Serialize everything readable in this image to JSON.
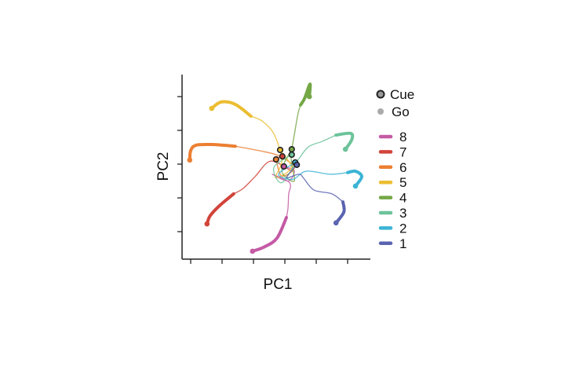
{
  "chart_data": {
    "type": "line",
    "title": "",
    "xlabel": "PC1",
    "ylabel": "PC2",
    "xlim": [
      -3.3,
      2.7
    ],
    "ylim": [
      -2.8,
      2.65
    ],
    "x_ticks": [
      -3,
      -2,
      -1,
      0,
      1,
      2
    ],
    "y_ticks": [
      -2,
      -1,
      0,
      1,
      2
    ],
    "tick_labels_shown": false,
    "grid": false,
    "legend_placement": "right",
    "markers": {
      "cue_label": "Cue",
      "go_label": "Go",
      "go_color": "#aaaaaa"
    },
    "series": [
      {
        "name": "8",
        "color": "#c55aa5",
        "late_start_index": 7,
        "points": [
          [
            -0.03,
            -0.07
          ],
          [
            0.3,
            -0.2
          ],
          [
            0.1,
            -0.5
          ],
          [
            -0.4,
            -0.3
          ],
          [
            0.15,
            -0.55
          ],
          [
            0.12,
            -0.9
          ],
          [
            0.1,
            -1.3
          ],
          [
            0.05,
            -1.58
          ],
          [
            -0.25,
            -2.19
          ],
          [
            -0.65,
            -2.45
          ],
          [
            -1.03,
            -2.58
          ]
        ]
      },
      {
        "name": "7",
        "color": "#d2433a",
        "late_start_index": 6,
        "points": [
          [
            -0.08,
            0.23
          ],
          [
            -0.3,
            0.1
          ],
          [
            0.2,
            -0.2
          ],
          [
            -0.45,
            0.09
          ],
          [
            -0.95,
            -0.37
          ],
          [
            -1.33,
            -0.72
          ],
          [
            -1.63,
            -0.88
          ],
          [
            -2.08,
            -1.23
          ],
          [
            -2.38,
            -1.53
          ],
          [
            -2.48,
            -1.77
          ]
        ]
      },
      {
        "name": "6",
        "color": "#ec7f32",
        "late_start_index": 5,
        "points": [
          [
            -0.28,
            0.14
          ],
          [
            -0.1,
            -0.35
          ],
          [
            0.3,
            -0.1
          ],
          [
            -0.2,
            0.25
          ],
          [
            -0.83,
            0.4
          ],
          [
            -1.58,
            0.53
          ],
          [
            -2.33,
            0.58
          ],
          [
            -2.83,
            0.56
          ],
          [
            -3.0,
            0.4
          ],
          [
            -3.03,
            0.12
          ]
        ]
      },
      {
        "name": "5",
        "color": "#ebbd30",
        "late_start_index": 6,
        "points": [
          [
            -0.15,
            0.42
          ],
          [
            0.2,
            -0.1
          ],
          [
            -0.3,
            -0.4
          ],
          [
            -0.1,
            0.1
          ],
          [
            -0.33,
            0.86
          ],
          [
            -0.7,
            1.26
          ],
          [
            -1.08,
            1.42
          ],
          [
            -1.58,
            1.77
          ],
          [
            -2.03,
            1.84
          ],
          [
            -2.33,
            1.65
          ]
        ]
      },
      {
        "name": "4",
        "color": "#74a745",
        "late_start_index": 6,
        "points": [
          [
            0.22,
            0.44
          ],
          [
            -0.1,
            -0.2
          ],
          [
            0.3,
            -0.5
          ],
          [
            0.2,
            0.2
          ],
          [
            0.33,
            1.02
          ],
          [
            0.42,
            1.5
          ],
          [
            0.5,
            1.75
          ],
          [
            0.63,
            1.95
          ],
          [
            0.8,
            2.37
          ],
          [
            0.78,
            2.0
          ]
        ]
      },
      {
        "name": "3",
        "color": "#6cc39a",
        "late_start_index": 6,
        "points": [
          [
            0.22,
            0.28
          ],
          [
            -0.35,
            -0.1
          ],
          [
            -0.1,
            -0.55
          ],
          [
            0.4,
            0.1
          ],
          [
            0.75,
            0.51
          ],
          [
            1.18,
            0.67
          ],
          [
            1.63,
            0.86
          ],
          [
            2.1,
            0.91
          ],
          [
            2.13,
            0.72
          ],
          [
            1.93,
            0.44
          ]
        ]
      },
      {
        "name": "2",
        "color": "#3cb4d6",
        "late_start_index": 5,
        "points": [
          [
            0.33,
            0.05
          ],
          [
            -0.2,
            -0.3
          ],
          [
            0.25,
            -0.45
          ],
          [
            0.68,
            -0.21
          ],
          [
            1.43,
            -0.3
          ],
          [
            2.0,
            -0.25
          ],
          [
            2.25,
            -0.21
          ],
          [
            2.45,
            -0.37
          ],
          [
            2.25,
            -0.65
          ]
        ]
      },
      {
        "name": "1",
        "color": "#5b64b0",
        "late_start_index": 6,
        "points": [
          [
            0.38,
            -0.02
          ],
          [
            0.05,
            -0.4
          ],
          [
            0.45,
            -0.3
          ],
          [
            0.6,
            -0.42
          ],
          [
            0.93,
            -0.77
          ],
          [
            1.5,
            -0.88
          ],
          [
            1.85,
            -1.12
          ],
          [
            1.88,
            -1.42
          ],
          [
            1.63,
            -1.74
          ]
        ]
      }
    ]
  }
}
